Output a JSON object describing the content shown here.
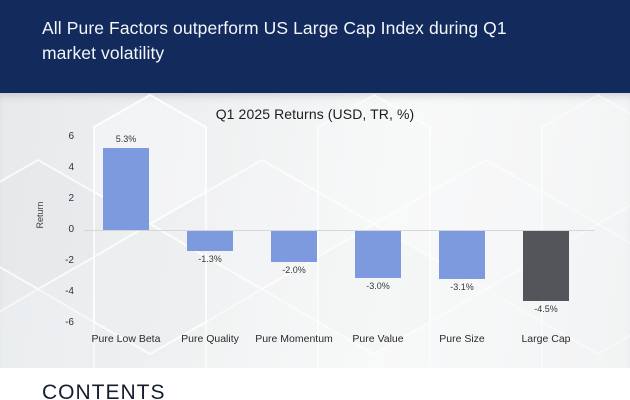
{
  "header": {
    "title_line1": "All Pure Factors outperform US Large Cap Index during Q1",
    "title_line2": "market volatility"
  },
  "chart_data": {
    "type": "bar",
    "title": "Q1 2025 Returns (USD, TR, %)",
    "xlabel": "",
    "ylabel": "Return",
    "categories": [
      "Pure Low Beta",
      "Pure Quality",
      "Pure Momentum",
      "Pure Value",
      "Pure Size",
      "Large Cap"
    ],
    "values": [
      5.3,
      -1.3,
      -2.0,
      -3.0,
      -3.1,
      -4.5
    ],
    "data_labels": [
      "5.3%",
      "-1.3%",
      "-2.0%",
      "-3.0%",
      "-3.1%",
      "-4.5%"
    ],
    "bar_colors": [
      "#7d9ade",
      "#7d9ade",
      "#7d9ade",
      "#7d9ade",
      "#7d9ade",
      "#53555a"
    ],
    "ylim": [
      -6,
      6
    ],
    "yticks": [
      6,
      4,
      2,
      0,
      -2,
      -4,
      -6
    ],
    "grid": false,
    "legend": "none"
  },
  "footer": {
    "contents_label": "CONTENTS"
  },
  "colors": {
    "header_bg": "#122a5c",
    "factor_bar": "#7d9ade",
    "index_bar": "#53555a",
    "axis_line": "#d4d6d8"
  }
}
